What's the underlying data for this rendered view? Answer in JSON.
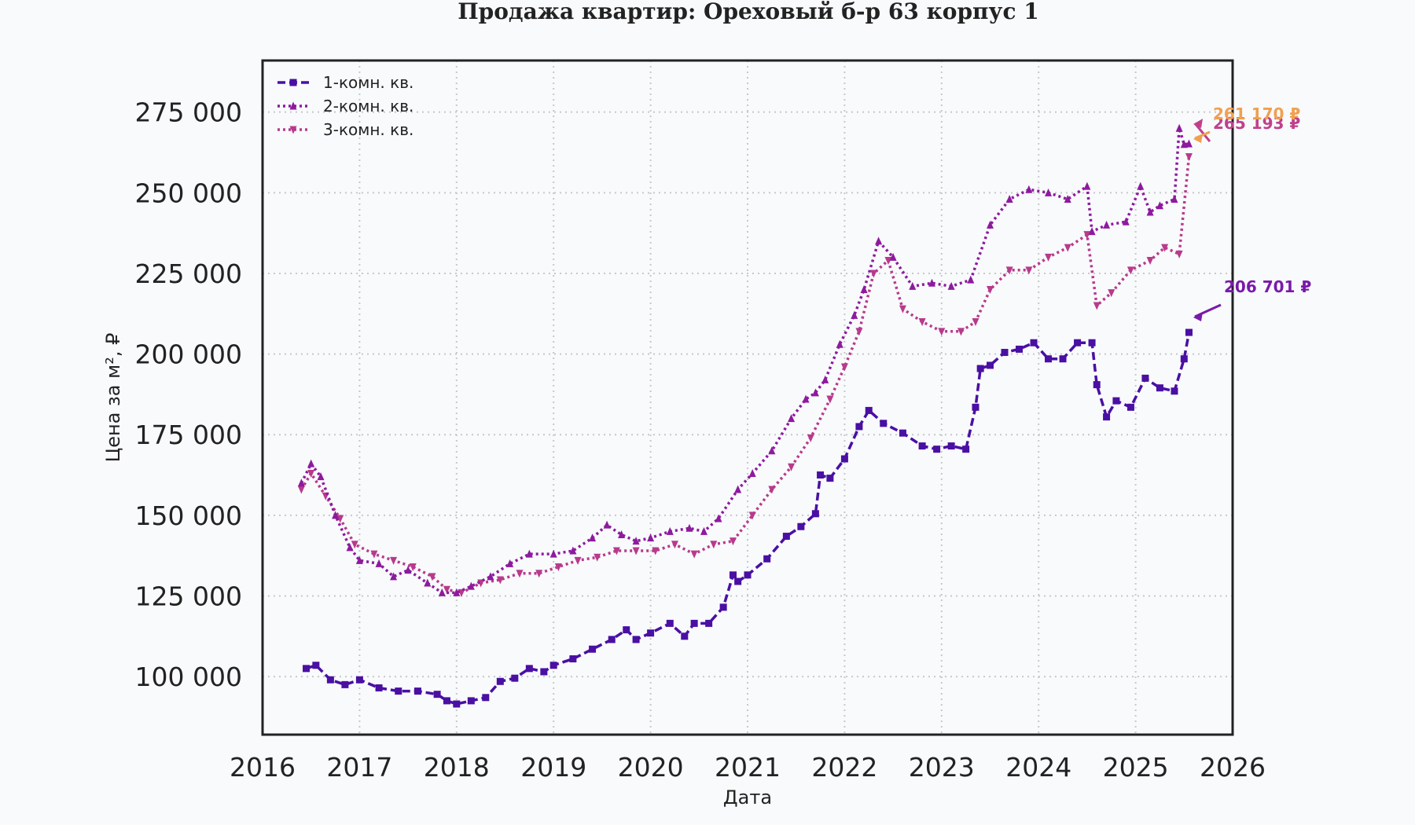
{
  "chart_data": {
    "type": "line",
    "title": "Продажа квартир: Ореховый б-р 63 корпус 1",
    "xlabel": "Дата",
    "ylabel": "Цена за м², ₽",
    "x_range": [
      2016.0,
      2026.0
    ],
    "ylim": [
      82000,
      291000
    ],
    "x_ticks": [
      "2016",
      "2017",
      "2018",
      "2019",
      "2020",
      "2021",
      "2022",
      "2023",
      "2024",
      "2025",
      "2026"
    ],
    "y_ticks": [
      "100 000",
      "125 000",
      "150 000",
      "175 000",
      "200 000",
      "225 000",
      "250 000",
      "275 000"
    ],
    "y_tick_values": [
      100000,
      125000,
      150000,
      175000,
      200000,
      225000,
      250000,
      275000
    ],
    "grid": true,
    "legend_position": "top-left",
    "series": [
      {
        "name": "1-комн. кв.",
        "color": "#4a0fa3",
        "line_style": "dashed",
        "marker": "square",
        "x": [
          2016.45,
          2016.55,
          2016.7,
          2016.85,
          2017.0,
          2017.2,
          2017.4,
          2017.6,
          2017.8,
          2017.9,
          2018.0,
          2018.15,
          2018.3,
          2018.45,
          2018.6,
          2018.75,
          2018.9,
          2019.0,
          2019.2,
          2019.4,
          2019.6,
          2019.75,
          2019.85,
          2020.0,
          2020.2,
          2020.35,
          2020.45,
          2020.6,
          2020.75,
          2020.85,
          2020.9,
          2021.0,
          2021.2,
          2021.4,
          2021.55,
          2021.7,
          2021.75,
          2021.85,
          2022.0,
          2022.15,
          2022.25,
          2022.4,
          2022.6,
          2022.8,
          2022.95,
          2023.1,
          2023.25,
          2023.35,
          2023.4,
          2023.5,
          2023.65,
          2023.8,
          2023.95,
          2024.1,
          2024.25,
          2024.4,
          2024.55,
          2024.6,
          2024.7,
          2024.8,
          2024.95,
          2025.1,
          2025.25,
          2025.4,
          2025.5,
          2025.55
        ],
        "y": [
          102500,
          103500,
          99000,
          97500,
          99000,
          96500,
          95500,
          95500,
          94500,
          92500,
          91500,
          92500,
          93500,
          98500,
          99500,
          102500,
          101500,
          103500,
          105500,
          108500,
          111500,
          114500,
          111500,
          113500,
          116500,
          112500,
          116500,
          116500,
          121500,
          131500,
          129500,
          131500,
          136500,
          143500,
          146500,
          150500,
          162500,
          161500,
          167500,
          177500,
          182500,
          178500,
          175500,
          171500,
          170500,
          171500,
          170500,
          183500,
          195500,
          196500,
          200500,
          201500,
          203500,
          198500,
          198500,
          203500,
          203500,
          190500,
          180500,
          185500,
          183500,
          192500,
          189500,
          188500,
          198500,
          206701
        ]
      },
      {
        "name": "2-комн. кв.",
        "color": "#8e1a9e",
        "line_style": "dotted",
        "marker": "triangle-up",
        "x": [
          2016.4,
          2016.5,
          2016.6,
          2016.75,
          2016.9,
          2017.0,
          2017.2,
          2017.35,
          2017.5,
          2017.7,
          2017.85,
          2018.0,
          2018.15,
          2018.35,
          2018.55,
          2018.75,
          2019.0,
          2019.2,
          2019.4,
          2019.55,
          2019.7,
          2019.85,
          2020.0,
          2020.2,
          2020.4,
          2020.55,
          2020.7,
          2020.9,
          2021.05,
          2021.25,
          2021.45,
          2021.6,
          2021.7,
          2021.8,
          2021.95,
          2022.1,
          2022.2,
          2022.35,
          2022.5,
          2022.7,
          2022.9,
          2023.1,
          2023.3,
          2023.5,
          2023.7,
          2023.9,
          2024.1,
          2024.3,
          2024.5,
          2024.55,
          2024.7,
          2024.9,
          2025.05,
          2025.15,
          2025.25,
          2025.4,
          2025.45,
          2025.5,
          2025.55
        ],
        "y": [
          160000,
          166000,
          162000,
          150000,
          140000,
          136000,
          135000,
          131000,
          133000,
          129000,
          126000,
          126000,
          128000,
          131000,
          135000,
          138000,
          138000,
          139000,
          143000,
          147000,
          144000,
          142000,
          143000,
          145000,
          146000,
          145000,
          149000,
          158000,
          163000,
          170000,
          180000,
          186000,
          188000,
          192000,
          203000,
          212000,
          220000,
          235000,
          230000,
          221000,
          222000,
          221000,
          223000,
          240000,
          248000,
          251000,
          250000,
          248000,
          252000,
          238000,
          240000,
          241000,
          252000,
          244000,
          246000,
          248000,
          270000,
          265000,
          265193
        ]
      },
      {
        "name": "3-комн. кв.",
        "color": "#b83a8c",
        "line_style": "dotted",
        "marker": "triangle-down",
        "x": [
          2016.4,
          2016.5,
          2016.65,
          2016.8,
          2016.95,
          2017.15,
          2017.35,
          2017.55,
          2017.75,
          2017.9,
          2018.05,
          2018.25,
          2018.45,
          2018.65,
          2018.85,
          2019.05,
          2019.25,
          2019.45,
          2019.65,
          2019.85,
          2020.05,
          2020.25,
          2020.45,
          2020.65,
          2020.85,
          2021.05,
          2021.25,
          2021.45,
          2021.65,
          2021.85,
          2022.0,
          2022.15,
          2022.3,
          2022.45,
          2022.6,
          2022.8,
          2023.0,
          2023.2,
          2023.35,
          2023.5,
          2023.7,
          2023.9,
          2024.1,
          2024.3,
          2024.5,
          2024.6,
          2024.75,
          2024.95,
          2025.15,
          2025.3,
          2025.45,
          2025.55
        ],
        "y": [
          158000,
          163000,
          156000,
          149000,
          141000,
          138000,
          136000,
          134000,
          131000,
          127000,
          126000,
          129000,
          130000,
          132000,
          132000,
          134000,
          136000,
          137000,
          139000,
          139000,
          139000,
          141000,
          138000,
          141000,
          142000,
          150000,
          158000,
          165000,
          174000,
          186000,
          196000,
          207000,
          225000,
          229000,
          214000,
          210000,
          207000,
          207000,
          210000,
          220000,
          226000,
          226000,
          230000,
          233000,
          237000,
          215000,
          219000,
          226000,
          229000,
          233000,
          231000,
          261170
        ]
      }
    ],
    "annotations": [
      {
        "text": "206 701 ₽",
        "x": 2025.55,
        "y": 206701,
        "color": "#7a1aa8"
      },
      {
        "text": "265 193 ₽",
        "x": 2025.55,
        "y": 265193,
        "color": "#c0408a"
      },
      {
        "text": "261 170 ₽",
        "x": 2025.55,
        "y": 261170,
        "color": "#f0a050"
      }
    ]
  }
}
